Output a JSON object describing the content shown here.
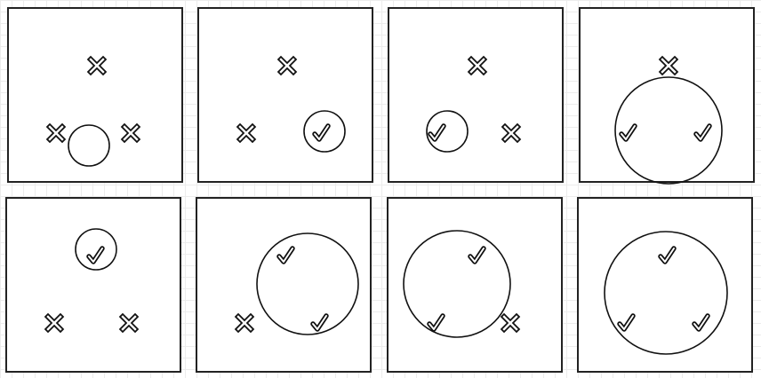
{
  "colors": {
    "stroke": "#111111",
    "panel_border": "#222222",
    "grid": "#ececec",
    "background": "#ffffff"
  },
  "marker_types": {
    "x": "cross-icon",
    "check": "checkmark-icon"
  },
  "panels": [
    {
      "points": [
        "x",
        "x",
        "x"
      ],
      "circle": "small-bottom"
    },
    {
      "points": [
        "x",
        "x",
        "check"
      ],
      "circle": "around-point-3"
    },
    {
      "points": [
        "x",
        "check",
        "x"
      ],
      "circle": "around-point-2"
    },
    {
      "points": [
        "x",
        "check",
        "check"
      ],
      "circle": "through-points-2-3"
    },
    {
      "points": [
        "check",
        "x",
        "x"
      ],
      "circle": "around-point-1"
    },
    {
      "points": [
        "check",
        "x",
        "check"
      ],
      "circle": "through-points-1-3"
    },
    {
      "points": [
        "check",
        "check",
        "x"
      ],
      "circle": "through-points-1-2"
    },
    {
      "points": [
        "check",
        "check",
        "check"
      ],
      "circle": "through-all-points"
    }
  ]
}
